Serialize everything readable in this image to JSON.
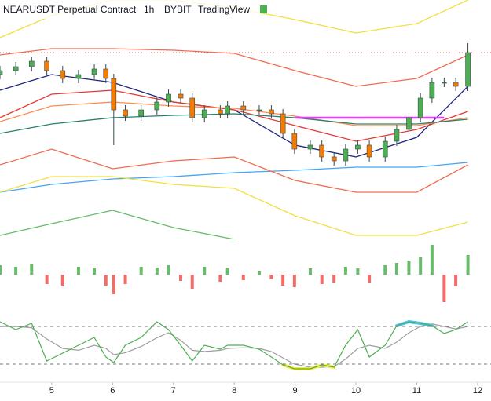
{
  "chart_data": {
    "type": "candlestick",
    "title": "NEARUSDT Perpetual Contract",
    "interval": "1h",
    "exchange": "BYBIT",
    "source": "TradingView",
    "xlim": [
      4.15,
      12.22
    ],
    "xticks": [
      5,
      6,
      7,
      8,
      9,
      10,
      11,
      12
    ],
    "ylim": [
      0,
      305
    ],
    "up_color": "#26a69a",
    "down_color": "#ef5350",
    "candle_up": "#4caf50",
    "candle_down": "#f57c00",
    "x": [
      4.15,
      4.41,
      4.67,
      4.92,
      5.18,
      5.44,
      5.7,
      5.89,
      6.02,
      6.21,
      6.47,
      6.73,
      6.92,
      7.12,
      7.31,
      7.51,
      7.77,
      7.89,
      8.15,
      8.41,
      8.61,
      8.8,
      8.99,
      9.25,
      9.44,
      9.64,
      9.83,
      10.03,
      10.22,
      10.48,
      10.67,
      10.87,
      11.06,
      11.25,
      11.45,
      11.64,
      11.84
    ],
    "open": [
      210,
      215,
      220,
      227,
      215,
      205,
      210,
      217,
      205,
      165,
      157,
      165,
      175,
      185,
      180,
      155,
      165,
      160,
      170,
      165,
      165,
      160,
      135,
      115,
      120,
      105,
      100,
      115,
      120,
      105,
      125,
      140,
      155,
      180,
      200,
      200,
      195
    ],
    "high": [
      221,
      226,
      233,
      233,
      221,
      216,
      223,
      223,
      211,
      171,
      171,
      181,
      191,
      191,
      186,
      171,
      171,
      176,
      176,
      171,
      171,
      166,
      141,
      126,
      126,
      111,
      121,
      126,
      126,
      131,
      146,
      161,
      186,
      206,
      206,
      206,
      250
    ],
    "low": [
      204,
      209,
      214,
      209,
      199,
      199,
      204,
      199,
      120,
      151,
      151,
      159,
      169,
      174,
      149,
      149,
      154,
      154,
      159,
      159,
      154,
      129,
      109,
      109,
      99,
      94,
      94,
      109,
      99,
      99,
      119,
      134,
      149,
      174,
      194,
      189,
      189
    ],
    "close": [
      215,
      220,
      227,
      215,
      205,
      210,
      217,
      205,
      165,
      157,
      165,
      175,
      185,
      180,
      155,
      165,
      160,
      170,
      165,
      165,
      160,
      135,
      115,
      120,
      105,
      100,
      115,
      120,
      105,
      125,
      140,
      155,
      180,
      200,
      200,
      195,
      238
    ],
    "price_line_color": "#ef5350",
    "indicators": {
      "x": [
        4.15,
        5,
        6,
        7,
        8,
        9,
        10,
        11,
        11.84
      ],
      "series": [
        {
          "color": "#f0e040",
          "values": [
            257,
            285,
            305,
            305,
            295,
            280,
            263,
            275,
            305
          ]
        },
        {
          "color": "#ef6c50",
          "values": [
            235,
            243,
            243,
            241,
            237,
            215,
            195,
            205,
            235
          ]
        },
        {
          "color": "#1a237e",
          "values": [
            190,
            210,
            200,
            175,
            165,
            120,
            105,
            130,
            195
          ]
        },
        {
          "color": "#e53935",
          "values": [
            155,
            185,
            190,
            175,
            165,
            145,
            125,
            140,
            163
          ]
        },
        {
          "color": "#ff8a50",
          "values": [
            150,
            170,
            175,
            170,
            167,
            157,
            145,
            145,
            155
          ]
        },
        {
          "color": "#26806e",
          "values": [
            135,
            147,
            155,
            158,
            160,
            155,
            147,
            147,
            153
          ]
        },
        {
          "color": "#42a5f5",
          "values": [
            60,
            70,
            77,
            80,
            85,
            88,
            92,
            92,
            98
          ]
        },
        {
          "color": "#ef6c50",
          "values": [
            95,
            115,
            90,
            100,
            105,
            75,
            60,
            60,
            95
          ]
        },
        {
          "color": "#f0e040",
          "values": [
            60,
            80,
            80,
            70,
            65,
            30,
            5,
            5,
            22
          ]
        },
        {
          "color": "#66bb6a",
          "values": [
            5,
            20,
            37,
            15,
            0,
            null,
            null,
            null,
            null
          ]
        }
      ],
      "drawing": {
        "color": "#e040fb",
        "x": [
          9.0,
          11.45
        ],
        "values": [
          155,
          155
        ]
      }
    },
    "volume": {
      "ylim": [
        -40,
        40
      ],
      "values": [
        12,
        10,
        14,
        -12,
        -15,
        10,
        8,
        -14,
        -25,
        -12,
        10,
        9,
        12,
        -8,
        -18,
        10,
        -9,
        8,
        -7,
        5,
        -6,
        -14,
        -16,
        8,
        -12,
        -10,
        10,
        8,
        -10,
        12,
        15,
        18,
        22,
        38,
        -35,
        -15,
        25
      ]
    },
    "oscillator": {
      "ylim": [
        0,
        100
      ],
      "levels": [
        80,
        20
      ],
      "high_color": "#4fc3f7",
      "low_color": "#ffeb3b",
      "series": [
        {
          "color": "#4caf50",
          "values": [
            87.5,
            75,
            85,
            25,
            37.5,
            50,
            62.5,
            31.25,
            22.5,
            50,
            62.5,
            87.5,
            75,
            50,
            25,
            50,
            43.75,
            50,
            50,
            43.75,
            31.25,
            18.75,
            12.5,
            12.5,
            18.75,
            15,
            50,
            75,
            31.25,
            50,
            81.25,
            87.5,
            85,
            81.25,
            68.75,
            75,
            87.5
          ]
        },
        {
          "color": "#9e9e9e",
          "values": [
            80,
            80,
            78,
            60,
            45,
            42,
            50,
            45,
            35,
            38,
            48,
            62,
            70,
            58,
            42,
            40,
            42,
            45,
            46,
            45,
            40,
            30,
            20,
            15,
            15,
            16,
            28,
            45,
            50,
            45,
            55,
            70,
            80,
            84,
            80,
            76,
            80
          ]
        }
      ]
    }
  }
}
